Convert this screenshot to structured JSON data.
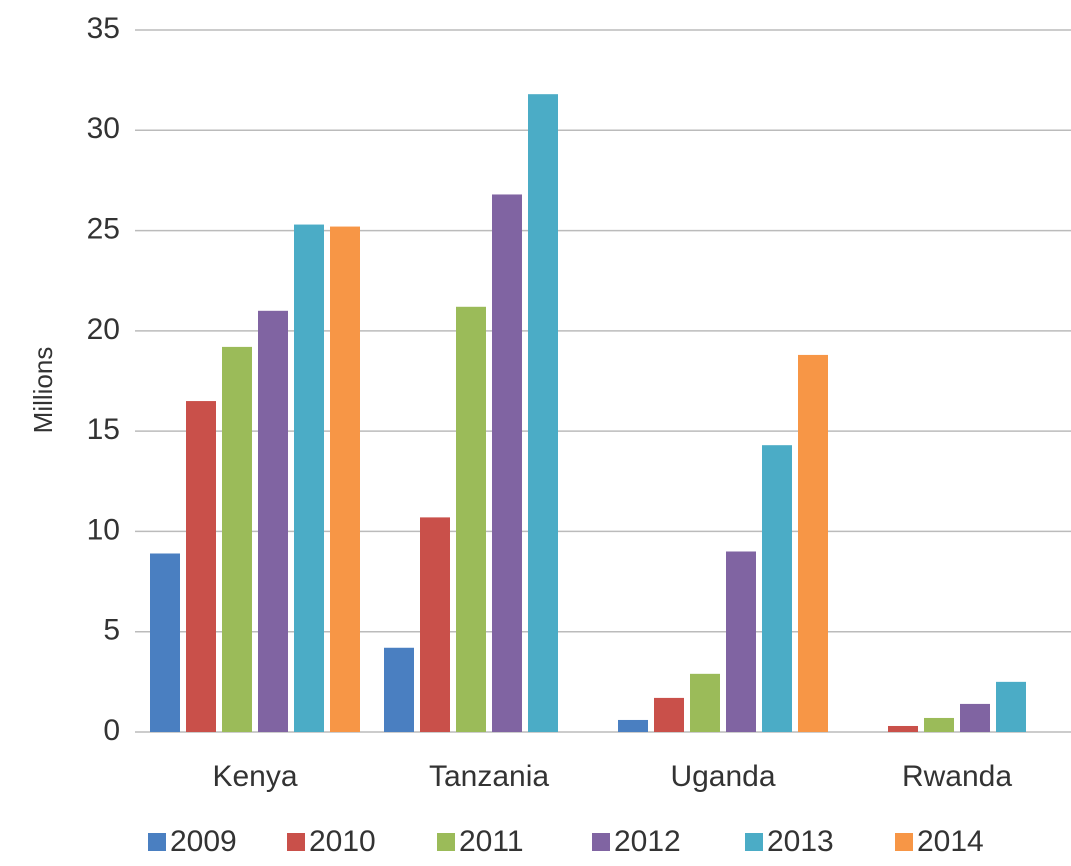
{
  "chart_data": {
    "type": "bar",
    "y_label": "Millions",
    "categories": [
      "Kenya",
      "Tanzania",
      "Uganda",
      "Rwanda"
    ],
    "series": [
      {
        "name": "2009",
        "color": "#4a7fc1",
        "values": [
          8.9,
          4.2,
          0.6,
          null
        ]
      },
      {
        "name": "2010",
        "color": "#c9504a",
        "values": [
          16.5,
          10.7,
          1.7,
          0.3
        ]
      },
      {
        "name": "2011",
        "color": "#9bbb59",
        "values": [
          19.2,
          21.2,
          2.9,
          0.7
        ]
      },
      {
        "name": "2012",
        "color": "#8064a2",
        "values": [
          21.0,
          26.8,
          9.0,
          1.4
        ]
      },
      {
        "name": "2013",
        "color": "#4bacc6",
        "values": [
          25.3,
          31.8,
          14.3,
          2.5
        ]
      },
      {
        "name": "2014",
        "color": "#f79646",
        "values": [
          25.2,
          null,
          18.8,
          null
        ]
      }
    ],
    "ylim": [
      0,
      35
    ],
    "yticks": [
      0,
      5,
      10,
      15,
      20,
      25,
      30,
      35
    ],
    "grid": true,
    "legend": "bottom"
  }
}
